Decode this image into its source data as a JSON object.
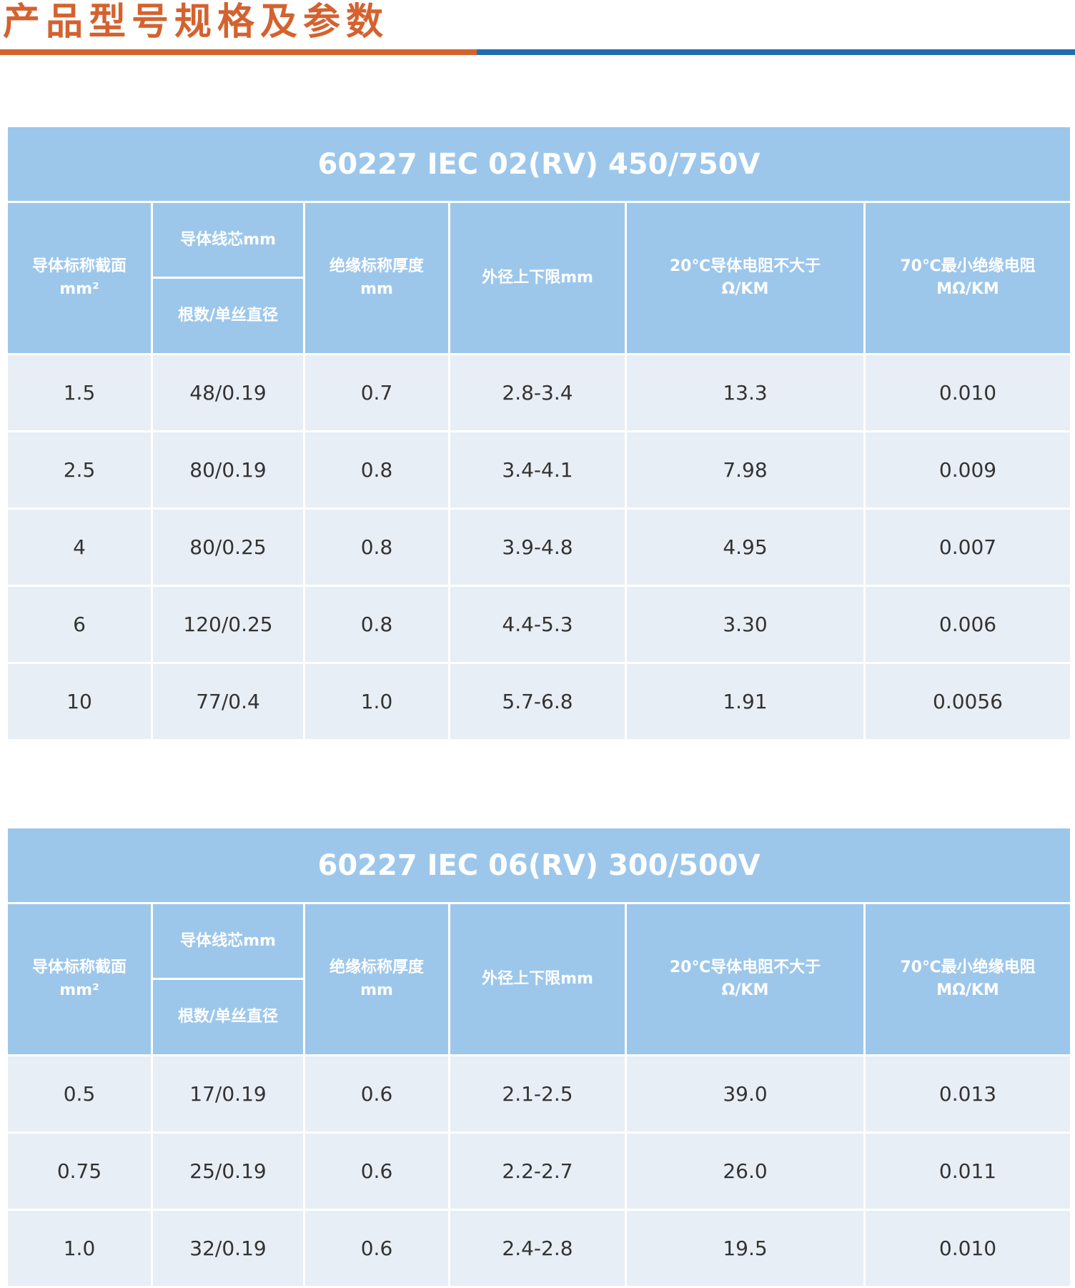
{
  "page_title": "产品型号规格及参数",
  "colors": {
    "accent_orange": "#d4622f",
    "accent_blue": "#226cb4",
    "header_bg": "#9cc7eb",
    "cell_bg": "#e8eef5"
  },
  "headers": {
    "area": "导体标称截面",
    "area_unit": "mm²",
    "core": "导体线芯mm",
    "core_sub": "根数/单丝直径",
    "insulation": "绝缘标称厚度",
    "insulation_unit": "mm",
    "od": "外径上下限mm",
    "resistance": "20℃导体电阻不大于",
    "resistance_unit": "Ω/KM",
    "insul_res": "70℃最小绝缘电阻",
    "insul_res_unit": "MΩ/KM"
  },
  "tables": [
    {
      "title": "60227 IEC 02(RV) 450/750V",
      "rows": [
        [
          "1.5",
          "48/0.19",
          "0.7",
          "2.8-3.4",
          "13.3",
          "0.010"
        ],
        [
          "2.5",
          "80/0.19",
          "0.8",
          "3.4-4.1",
          "7.98",
          "0.009"
        ],
        [
          "4",
          "80/0.25",
          "0.8",
          "3.9-4.8",
          "4.95",
          "0.007"
        ],
        [
          "6",
          "120/0.25",
          "0.8",
          "4.4-5.3",
          "3.30",
          "0.006"
        ],
        [
          "10",
          "77/0.4",
          "1.0",
          "5.7-6.8",
          "1.91",
          "0.0056"
        ]
      ]
    },
    {
      "title": "60227 IEC 06(RV) 300/500V",
      "rows": [
        [
          "0.5",
          "17/0.19",
          "0.6",
          "2.1-2.5",
          "39.0",
          "0.013"
        ],
        [
          "0.75",
          "25/0.19",
          "0.6",
          "2.2-2.7",
          "26.0",
          "0.011"
        ],
        [
          "1.0",
          "32/0.19",
          "0.6",
          "2.4-2.8",
          "19.5",
          "0.010"
        ]
      ]
    }
  ]
}
